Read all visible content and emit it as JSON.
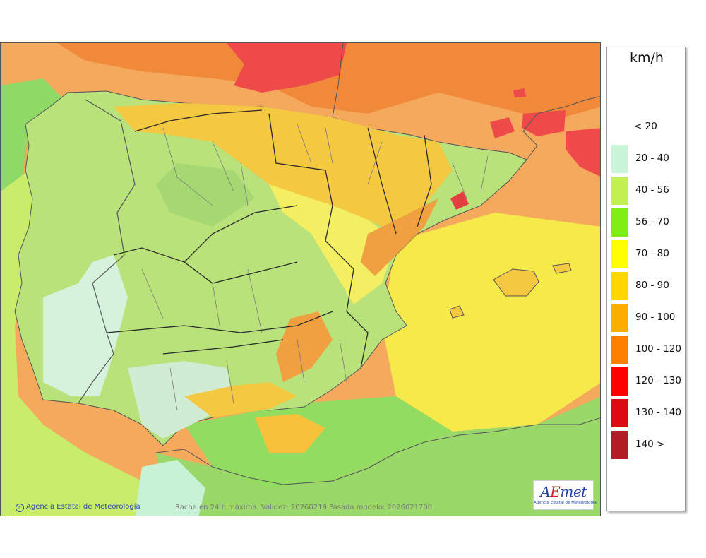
{
  "map": {
    "legend": {
      "unit": "km/h",
      "classes": [
        {
          "label": "< 20",
          "color": ""
        },
        {
          "label": "20 - 40",
          "color": "#c8f5d8"
        },
        {
          "label": "40 - 56",
          "color": "#c2f050"
        },
        {
          "label": "56 - 70",
          "color": "#80ee14"
        },
        {
          "label": "70 - 80",
          "color": "#ffff00"
        },
        {
          "label": "80 - 90",
          "color": "#ffd700"
        },
        {
          "label": "90 - 100",
          "color": "#ffae00"
        },
        {
          "label": "100 - 120",
          "color": "#ff8000"
        },
        {
          "label": "120 - 130",
          "color": "#ff0000"
        },
        {
          "label": "130 - 140",
          "color": "#dd0a14"
        },
        {
          "label": "140 >",
          "color": "#b21e26"
        }
      ]
    },
    "credit": "Agencia Estatal de Meteorología",
    "caption": "Racha en 24 h máxima. Validez: 20260219 Pasada modelo: 2026021700",
    "logo": {
      "word_a": "A",
      "word_b": "E",
      "word_c": "met",
      "subtitle": "Agencia Estatal de Meteorología"
    }
  }
}
